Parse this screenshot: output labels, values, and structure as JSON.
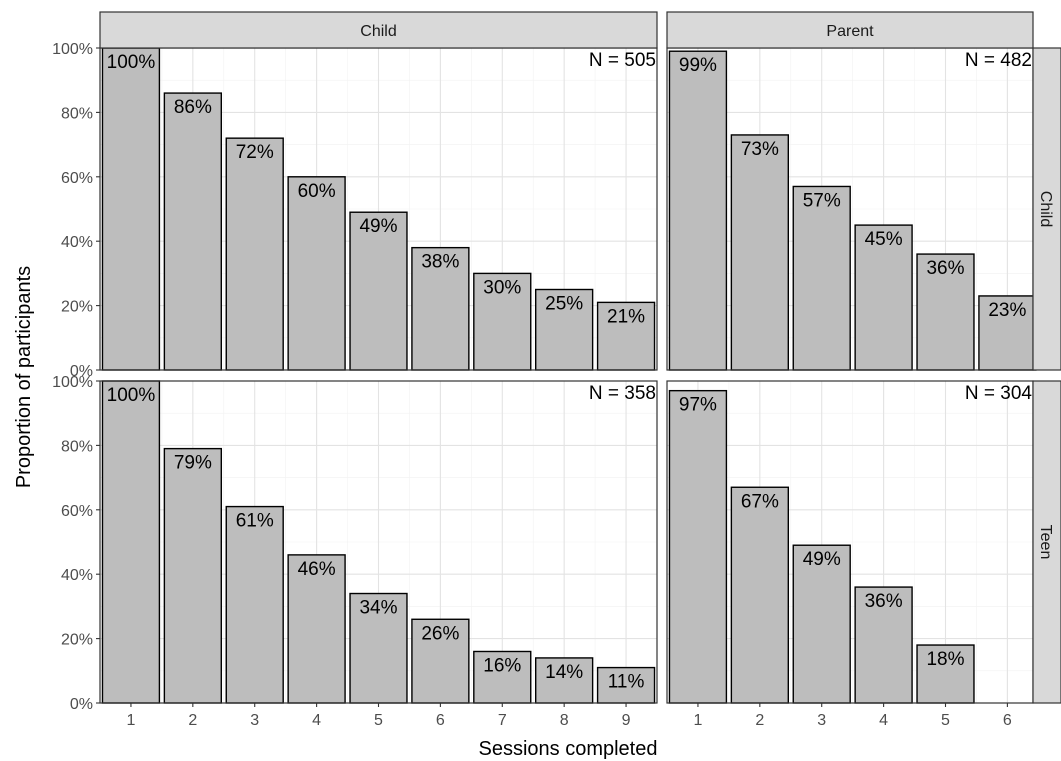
{
  "chart_data": {
    "type": "bar",
    "xlabel": "Sessions completed",
    "ylabel": "Proportion of participants",
    "ylim": [
      0,
      100
    ],
    "y_ticks": [
      "0%",
      "20%",
      "40%",
      "60%",
      "80%",
      "100%"
    ],
    "x_range": [
      0.5,
      9.5
    ],
    "grid": true,
    "bar_fill": "#bdbdbd",
    "strip_fill": "#d9d9d9",
    "column_strips": [
      "Child",
      "Parent"
    ],
    "row_strips": [
      "Child",
      "Teen"
    ],
    "panels": [
      {
        "col": 0,
        "row": 0,
        "n_label": "N = 505",
        "categories": [
          "1",
          "2",
          "3",
          "4",
          "5",
          "6",
          "7",
          "8",
          "9"
        ],
        "values": [
          100,
          86,
          72,
          60,
          49,
          38,
          30,
          25,
          21
        ],
        "labels": [
          "100%",
          "86%",
          "72%",
          "60%",
          "49%",
          "38%",
          "30%",
          "25%",
          "21%"
        ]
      },
      {
        "col": 1,
        "row": 0,
        "n_label": "N = 482",
        "categories": [
          "1",
          "2",
          "3",
          "4",
          "5",
          "6"
        ],
        "values": [
          99,
          73,
          57,
          45,
          36,
          23
        ],
        "labels": [
          "99%",
          "73%",
          "57%",
          "45%",
          "36%",
          "23%"
        ]
      },
      {
        "col": 0,
        "row": 1,
        "n_label": "N = 358",
        "categories": [
          "1",
          "2",
          "3",
          "4",
          "5",
          "6",
          "7",
          "8",
          "9"
        ],
        "values": [
          100,
          79,
          61,
          46,
          34,
          26,
          16,
          14,
          11
        ],
        "labels": [
          "100%",
          "79%",
          "61%",
          "46%",
          "34%",
          "26%",
          "16%",
          "14%",
          "11%"
        ]
      },
      {
        "col": 1,
        "row": 1,
        "n_label": "N = 304",
        "categories": [
          "1",
          "2",
          "3",
          "4",
          "5",
          "6"
        ],
        "values": [
          97,
          67,
          49,
          36,
          18,
          0
        ],
        "labels": [
          "97%",
          "67%",
          "49%",
          "36%",
          "18%",
          ""
        ]
      }
    ]
  }
}
